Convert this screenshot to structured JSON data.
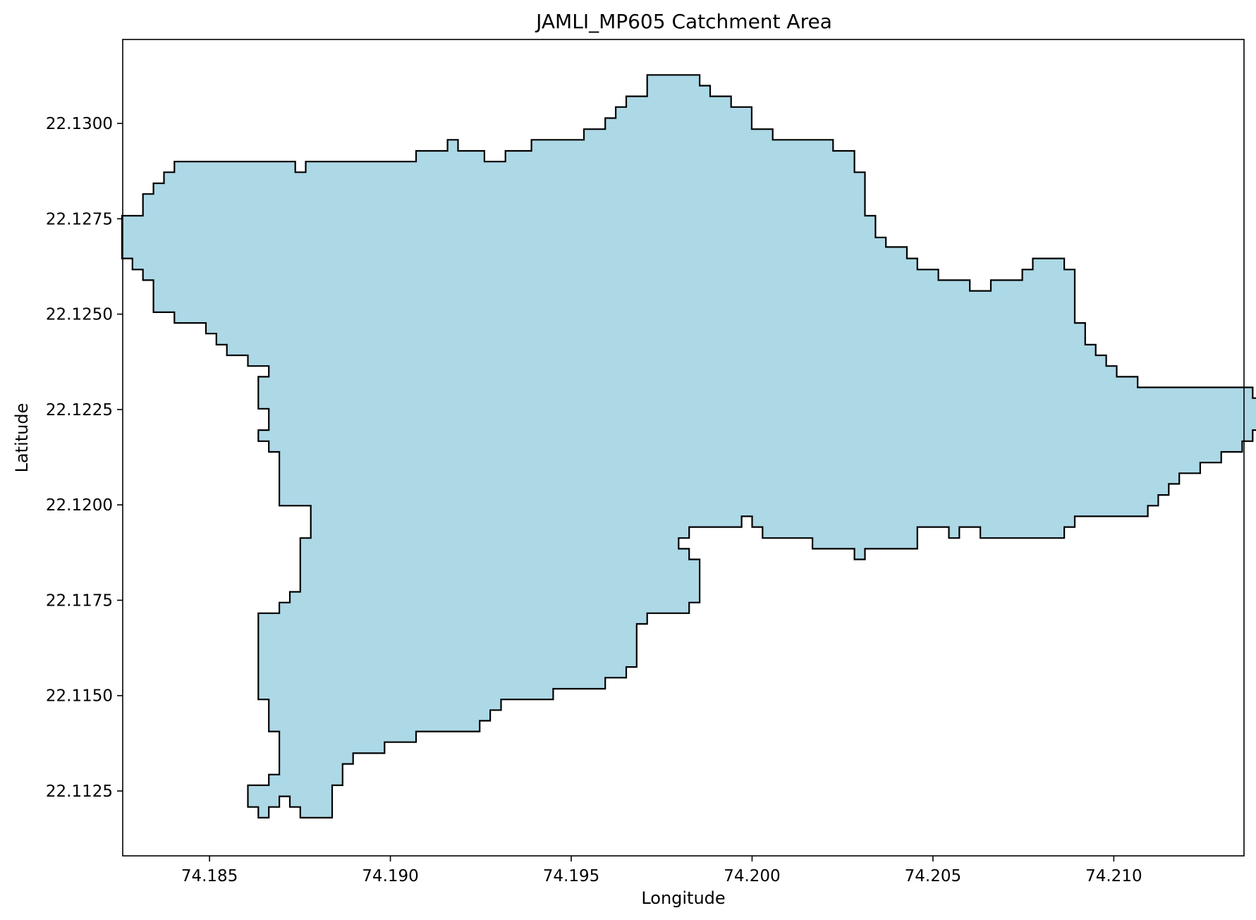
{
  "chart_data": {
    "type": "area",
    "title": "JAMLI_MP605 Catchment Area",
    "xlabel": "Longitude",
    "ylabel": "Latitude",
    "xlim": [
      74.1826,
      74.2136
    ],
    "ylim": [
      22.1108,
      22.1322
    ],
    "x_ticks": [
      {
        "value": 74.185,
        "label": "74.185"
      },
      {
        "value": 74.19,
        "label": "74.190"
      },
      {
        "value": 74.195,
        "label": "74.195"
      },
      {
        "value": 74.2,
        "label": "74.200"
      },
      {
        "value": 74.205,
        "label": "74.205"
      },
      {
        "value": 74.21,
        "label": "74.210"
      }
    ],
    "y_ticks": [
      {
        "value": 22.1125,
        "label": "22.1125"
      },
      {
        "value": 22.115,
        "label": "22.1150"
      },
      {
        "value": 22.1175,
        "label": "22.1175"
      },
      {
        "value": 22.12,
        "label": "22.1200"
      },
      {
        "value": 22.1225,
        "label": "22.1225"
      },
      {
        "value": 22.125,
        "label": "22.1250"
      },
      {
        "value": 22.1275,
        "label": "22.1275"
      },
      {
        "value": 22.13,
        "label": "22.1300"
      }
    ],
    "grid": false,
    "polygon": {
      "fill": "#add8e6",
      "stroke": "#000000",
      "boundary": [
        [
          74.18577,
          22.129
        ],
        [
          74.18737,
          22.129
        ],
        [
          74.18737,
          22.12872
        ],
        [
          74.18766,
          22.12872
        ],
        [
          74.18766,
          22.129
        ],
        [
          74.19071,
          22.129
        ],
        [
          74.19071,
          22.12928
        ],
        [
          74.19158,
          22.12928
        ],
        [
          74.19158,
          22.12957
        ],
        [
          74.19187,
          22.12957
        ],
        [
          74.19187,
          22.12928
        ],
        [
          74.1926,
          22.12928
        ],
        [
          74.1926,
          22.129
        ],
        [
          74.19318,
          22.129
        ],
        [
          74.19318,
          22.12928
        ],
        [
          74.1939,
          22.12928
        ],
        [
          74.1939,
          22.12957
        ],
        [
          74.19535,
          22.12957
        ],
        [
          74.19535,
          22.12985
        ],
        [
          74.19594,
          22.12985
        ],
        [
          74.19594,
          22.13014
        ],
        [
          74.19623,
          22.13014
        ],
        [
          74.19623,
          22.13043
        ],
        [
          74.19652,
          22.13043
        ],
        [
          74.19652,
          22.13071
        ],
        [
          74.1971,
          22.13071
        ],
        [
          74.1971,
          22.13127
        ],
        [
          74.19855,
          22.13127
        ],
        [
          74.19855,
          22.13099
        ],
        [
          74.19884,
          22.13099
        ],
        [
          74.19884,
          22.13071
        ],
        [
          74.19942,
          22.13071
        ],
        [
          74.19942,
          22.13043
        ],
        [
          74.19999,
          22.13043
        ],
        [
          74.19999,
          22.12985
        ],
        [
          74.20057,
          22.12985
        ],
        [
          74.20057,
          22.12957
        ],
        [
          74.20224,
          22.12957
        ],
        [
          74.20224,
          22.12928
        ],
        [
          74.20283,
          22.12928
        ],
        [
          74.20283,
          22.12872
        ],
        [
          74.20312,
          22.12872
        ],
        [
          74.20312,
          22.12758
        ],
        [
          74.20341,
          22.12758
        ],
        [
          74.20341,
          22.12701
        ],
        [
          74.2037,
          22.12701
        ],
        [
          74.2037,
          22.12676
        ],
        [
          74.20428,
          22.12676
        ],
        [
          74.20428,
          22.12646
        ],
        [
          74.20457,
          22.12646
        ],
        [
          74.20457,
          22.12617
        ],
        [
          74.20515,
          22.12617
        ],
        [
          74.20515,
          22.12589
        ],
        [
          74.20602,
          22.12589
        ],
        [
          74.20602,
          22.12561
        ],
        [
          74.2066,
          22.12561
        ],
        [
          74.2066,
          22.12589
        ],
        [
          74.20747,
          22.12589
        ],
        [
          74.20747,
          22.12617
        ],
        [
          74.20776,
          22.12617
        ],
        [
          74.20776,
          22.12646
        ],
        [
          74.20863,
          22.12646
        ],
        [
          74.20863,
          22.12617
        ],
        [
          74.20892,
          22.12617
        ],
        [
          74.20892,
          22.12477
        ],
        [
          74.20921,
          22.12477
        ],
        [
          74.20921,
          22.1242
        ],
        [
          74.2095,
          22.1242
        ],
        [
          74.2095,
          22.12392
        ],
        [
          74.20979,
          22.12392
        ],
        [
          74.20979,
          22.12364
        ],
        [
          74.21008,
          22.12364
        ],
        [
          74.21008,
          22.12336
        ],
        [
          74.21066,
          22.12336
        ],
        [
          74.21066,
          22.12308
        ],
        [
          74.21384,
          22.12308
        ],
        [
          74.21384,
          22.1228
        ],
        [
          74.21413,
          22.1228
        ],
        [
          74.21413,
          22.12196
        ],
        [
          74.21384,
          22.12196
        ],
        [
          74.21384,
          22.12167
        ],
        [
          74.21355,
          22.12167
        ],
        [
          74.21355,
          22.12139
        ],
        [
          74.21297,
          22.12139
        ],
        [
          74.21297,
          22.12111
        ],
        [
          74.21239,
          22.12111
        ],
        [
          74.21239,
          22.12083
        ],
        [
          74.21181,
          22.12083
        ],
        [
          74.21181,
          22.12055
        ],
        [
          74.21152,
          22.12055
        ],
        [
          74.21152,
          22.12026
        ],
        [
          74.21123,
          22.12026
        ],
        [
          74.21123,
          22.11998
        ],
        [
          74.21094,
          22.11998
        ],
        [
          74.21094,
          22.1197
        ],
        [
          74.20892,
          22.1197
        ],
        [
          74.20892,
          22.11942
        ],
        [
          74.20863,
          22.11942
        ],
        [
          74.20863,
          22.11913
        ],
        [
          74.20631,
          22.11913
        ],
        [
          74.20631,
          22.11942
        ],
        [
          74.20573,
          22.11942
        ],
        [
          74.20573,
          22.11913
        ],
        [
          74.20544,
          22.11913
        ],
        [
          74.20544,
          22.11942
        ],
        [
          74.20457,
          22.11942
        ],
        [
          74.20457,
          22.11885
        ],
        [
          74.20312,
          22.11885
        ],
        [
          74.20312,
          22.11857
        ],
        [
          74.20283,
          22.11857
        ],
        [
          74.20283,
          22.11885
        ],
        [
          74.20167,
          22.11885
        ],
        [
          74.20167,
          22.11913
        ],
        [
          74.20029,
          22.11913
        ],
        [
          74.20029,
          22.11942
        ],
        [
          74.2,
          22.11942
        ],
        [
          74.2,
          22.1197
        ],
        [
          74.19971,
          22.1197
        ],
        [
          74.19971,
          22.11942
        ],
        [
          74.19826,
          22.11942
        ],
        [
          74.19826,
          22.11913
        ],
        [
          74.19797,
          22.11913
        ],
        [
          74.19797,
          22.11885
        ],
        [
          74.19826,
          22.11885
        ],
        [
          74.19826,
          22.11857
        ],
        [
          74.19855,
          22.11857
        ],
        [
          74.19855,
          22.11744
        ],
        [
          74.19826,
          22.11744
        ],
        [
          74.19826,
          22.11716
        ],
        [
          74.1971,
          22.11716
        ],
        [
          74.1971,
          22.11688
        ],
        [
          74.19681,
          22.11688
        ],
        [
          74.19681,
          22.11575
        ],
        [
          74.19652,
          22.11575
        ],
        [
          74.19652,
          22.11547
        ],
        [
          74.19594,
          22.11547
        ],
        [
          74.19594,
          22.11518
        ],
        [
          74.1945,
          22.11518
        ],
        [
          74.1945,
          22.1149
        ],
        [
          74.19306,
          22.1149
        ],
        [
          74.19306,
          22.11462
        ],
        [
          74.19276,
          22.11462
        ],
        [
          74.19276,
          22.11434
        ],
        [
          74.19247,
          22.11434
        ],
        [
          74.19247,
          22.11406
        ],
        [
          74.19071,
          22.11406
        ],
        [
          74.19071,
          22.11378
        ],
        [
          74.18984,
          22.11378
        ],
        [
          74.18984,
          22.11349
        ],
        [
          74.18897,
          22.11349
        ],
        [
          74.18897,
          22.11321
        ],
        [
          74.18868,
          22.11321
        ],
        [
          74.18868,
          22.11265
        ],
        [
          74.18839,
          22.11265
        ],
        [
          74.18839,
          22.1118
        ],
        [
          74.18751,
          22.1118
        ],
        [
          74.18751,
          22.11208
        ],
        [
          74.18722,
          22.11208
        ],
        [
          74.18722,
          22.11236
        ],
        [
          74.18693,
          22.11236
        ],
        [
          74.18693,
          22.11208
        ],
        [
          74.18664,
          22.11208
        ],
        [
          74.18664,
          22.1118
        ],
        [
          74.18635,
          22.1118
        ],
        [
          74.18635,
          22.11208
        ],
        [
          74.18606,
          22.11208
        ],
        [
          74.18606,
          22.11265
        ],
        [
          74.18664,
          22.11265
        ],
        [
          74.18664,
          22.11293
        ],
        [
          74.18693,
          22.11293
        ],
        [
          74.18693,
          22.11406
        ],
        [
          74.18664,
          22.11406
        ],
        [
          74.18664,
          22.1149
        ],
        [
          74.18635,
          22.1149
        ],
        [
          74.18635,
          22.11716
        ],
        [
          74.18693,
          22.11716
        ],
        [
          74.18693,
          22.11744
        ],
        [
          74.18722,
          22.11744
        ],
        [
          74.18722,
          22.11772
        ],
        [
          74.18751,
          22.11772
        ],
        [
          74.18751,
          22.11913
        ],
        [
          74.1878,
          22.11913
        ],
        [
          74.1878,
          22.11998
        ],
        [
          74.18693,
          22.11998
        ],
        [
          74.18693,
          22.12139
        ],
        [
          74.18664,
          22.12139
        ],
        [
          74.18664,
          22.12167
        ],
        [
          74.18635,
          22.12167
        ],
        [
          74.18635,
          22.12196
        ],
        [
          74.18664,
          22.12196
        ],
        [
          74.18664,
          22.12252
        ],
        [
          74.18635,
          22.12252
        ],
        [
          74.18635,
          22.12336
        ],
        [
          74.18664,
          22.12336
        ],
        [
          74.18664,
          22.12364
        ],
        [
          74.18606,
          22.12364
        ],
        [
          74.18606,
          22.12392
        ],
        [
          74.18548,
          22.12392
        ],
        [
          74.18548,
          22.1242
        ],
        [
          74.18519,
          22.1242
        ],
        [
          74.18519,
          22.12449
        ],
        [
          74.1849,
          22.12449
        ],
        [
          74.1849,
          22.12477
        ],
        [
          74.18403,
          22.12477
        ],
        [
          74.18403,
          22.12505
        ],
        [
          74.18345,
          22.12505
        ],
        [
          74.18345,
          22.12589
        ],
        [
          74.18316,
          22.12589
        ],
        [
          74.18316,
          22.12617
        ],
        [
          74.18287,
          22.12617
        ],
        [
          74.18287,
          22.12646
        ],
        [
          74.18258,
          22.12646
        ],
        [
          74.18258,
          22.12758
        ],
        [
          74.18316,
          22.12758
        ],
        [
          74.18316,
          22.12815
        ],
        [
          74.18345,
          22.12815
        ],
        [
          74.18345,
          22.12843
        ],
        [
          74.18374,
          22.12843
        ],
        [
          74.18374,
          22.12872
        ],
        [
          74.18403,
          22.12872
        ],
        [
          74.18403,
          22.129
        ],
        [
          74.18577,
          22.129
        ]
      ]
    }
  }
}
